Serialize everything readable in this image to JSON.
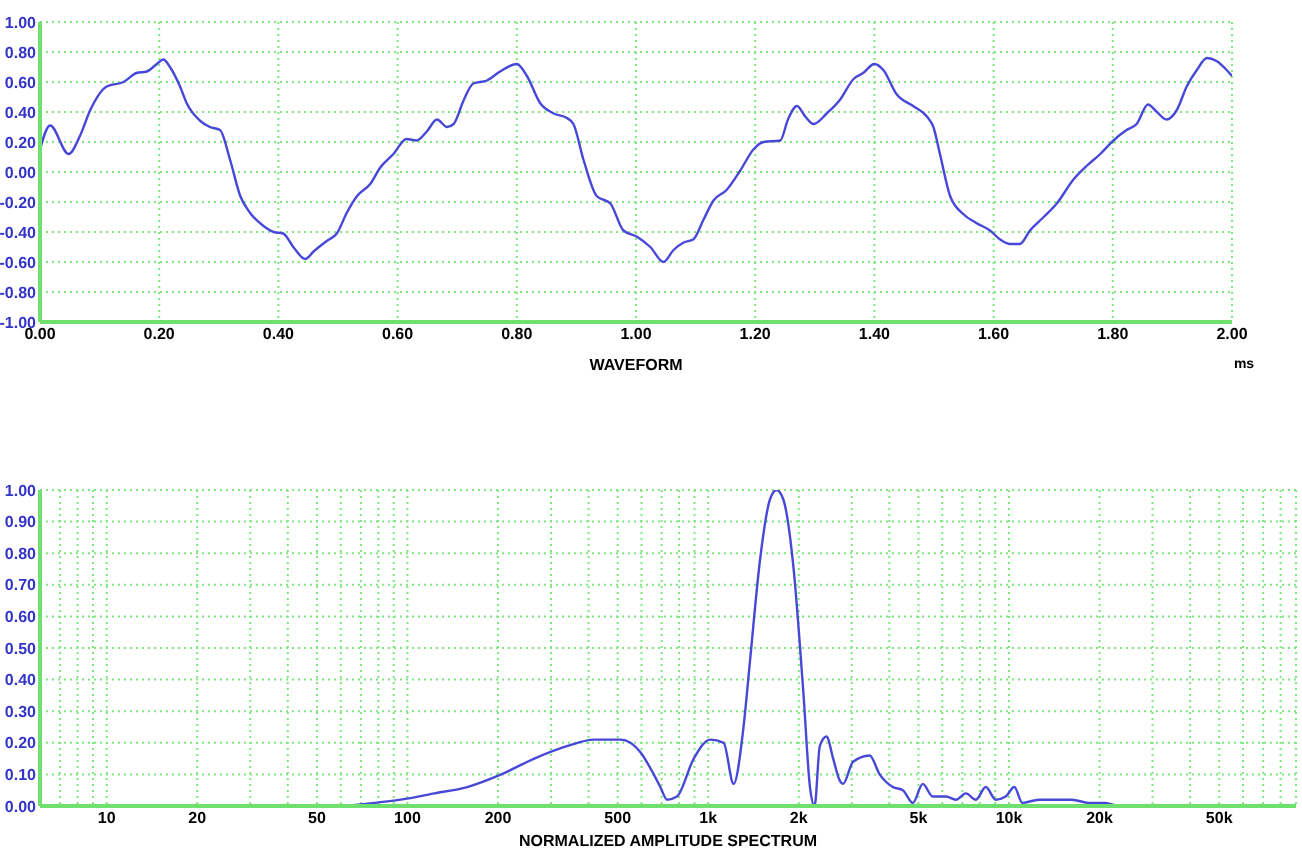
{
  "chart_data": [
    {
      "type": "line",
      "xlabel": "WAVEFORM",
      "annotations": [
        "ms"
      ],
      "grid": true,
      "x": [
        0,
        0.017,
        0.048,
        0.067,
        0.084,
        0.112,
        0.14,
        0.162,
        0.179,
        0.196,
        0.207,
        0.218,
        0.235,
        0.246,
        0.269,
        0.285,
        0.302,
        0.319,
        0.336,
        0.352,
        0.375,
        0.392,
        0.408,
        0.425,
        0.445,
        0.459,
        0.481,
        0.498,
        0.515,
        0.532,
        0.554,
        0.571,
        0.593,
        0.615,
        0.632,
        0.649,
        0.666,
        0.683,
        0.694,
        0.711,
        0.727,
        0.75,
        0.772,
        0.8,
        0.817,
        0.839,
        0.862,
        0.884,
        0.895,
        0.912,
        0.934,
        0.957,
        0.979,
        1.001,
        1.024,
        1.046,
        1.063,
        1.08,
        1.096,
        1.113,
        1.13,
        1.152,
        1.175,
        1.197,
        1.214,
        1.242,
        1.255,
        1.27,
        1.284,
        1.298,
        1.32,
        1.342,
        1.365,
        1.381,
        1.4,
        1.415,
        1.437,
        1.465,
        1.488,
        1.499,
        1.51,
        1.527,
        1.549,
        1.571,
        1.594,
        1.611,
        1.628,
        1.644,
        1.661,
        1.684,
        1.706,
        1.734,
        1.756,
        1.779,
        1.801,
        1.823,
        1.84,
        1.859,
        1.874,
        1.89,
        1.907,
        1.924,
        1.941,
        1.958,
        1.974,
        1.991,
        2.0
      ],
      "series": [
        {
          "color": "#4848d8",
          "values": [
            0.15,
            0.31,
            0.12,
            0.24,
            0.41,
            0.57,
            0.6,
            0.66,
            0.67,
            0.72,
            0.75,
            0.7,
            0.57,
            0.46,
            0.34,
            0.3,
            0.28,
            0.08,
            -0.16,
            -0.27,
            -0.36,
            -0.4,
            -0.41,
            -0.5,
            -0.58,
            -0.53,
            -0.46,
            -0.41,
            -0.27,
            -0.16,
            -0.08,
            0.03,
            0.12,
            0.22,
            0.21,
            0.27,
            0.35,
            0.3,
            0.32,
            0.48,
            0.59,
            0.61,
            0.67,
            0.72,
            0.64,
            0.46,
            0.39,
            0.36,
            0.32,
            0.08,
            -0.16,
            -0.21,
            -0.39,
            -0.43,
            -0.5,
            -0.6,
            -0.52,
            -0.47,
            -0.45,
            -0.32,
            -0.19,
            -0.12,
            0.01,
            0.15,
            0.2,
            0.21,
            0.35,
            0.44,
            0.37,
            0.32,
            0.39,
            0.48,
            0.62,
            0.66,
            0.72,
            0.68,
            0.52,
            0.44,
            0.37,
            0.3,
            0.12,
            -0.16,
            -0.28,
            -0.34,
            -0.39,
            -0.45,
            -0.48,
            -0.48,
            -0.39,
            -0.3,
            -0.21,
            -0.05,
            0.04,
            0.12,
            0.21,
            0.28,
            0.32,
            0.45,
            0.4,
            0.35,
            0.41,
            0.57,
            0.68,
            0.76,
            0.74,
            0.68,
            0.64
          ]
        }
      ],
      "xlim": [
        0,
        2
      ],
      "xticks": [
        {
          "value": 0,
          "label": "0.00"
        },
        {
          "value": 0.2,
          "label": "0.20"
        },
        {
          "value": 0.4,
          "label": "0.40"
        },
        {
          "value": 0.6,
          "label": "0.60"
        },
        {
          "value": 0.8,
          "label": "0.80"
        },
        {
          "value": 1,
          "label": "1.00"
        },
        {
          "value": 1.2,
          "label": "1.20"
        },
        {
          "value": 1.4,
          "label": "1.40"
        },
        {
          "value": 1.6,
          "label": "1.60"
        },
        {
          "value": 1.8,
          "label": "1.80"
        },
        {
          "value": 2,
          "label": "2.00"
        }
      ],
      "ylim": [
        -1,
        1
      ],
      "yticks": [
        {
          "value": -1,
          "label": "-1.00"
        },
        {
          "value": -0.8,
          "label": "-0.80"
        },
        {
          "value": -0.6,
          "label": "-0.60"
        },
        {
          "value": -0.4,
          "label": "-0.40"
        },
        {
          "value": -0.2,
          "label": "-0.20"
        },
        {
          "value": 0,
          "label": "0.00"
        },
        {
          "value": 0.2,
          "label": "0.20"
        },
        {
          "value": 0.4,
          "label": "0.40"
        },
        {
          "value": 0.6,
          "label": "0.60"
        },
        {
          "value": 0.8,
          "label": "0.80"
        },
        {
          "value": 1,
          "label": "1.00"
        }
      ]
    },
    {
      "type": "line",
      "xlabel": "NORMALIZED AMPLITUDE SPECTRUM",
      "grid": true,
      "log": "x",
      "x": [
        41,
        58,
        78,
        95,
        123,
        158,
        205,
        264,
        341,
        417,
        512,
        595,
        659,
        693,
        730,
        787,
        895,
        1016,
        1125,
        1214,
        1310,
        1377,
        1487,
        1604,
        1687,
        1777,
        1918,
        2071,
        2179,
        2257,
        2350,
        2473,
        2602,
        2738,
        2808,
        3031,
        3440,
        3715,
        4111,
        4436,
        4789,
        5168,
        5577,
        6170,
        6660,
        7187,
        7760,
        8373,
        9036,
        9752,
        10420,
        11070,
        12570,
        14270,
        16210,
        18400,
        20900,
        23140,
        28330,
        38450
      ],
      "series": [
        {
          "color": "#4848d8",
          "values": [
            0,
            0,
            0.01,
            0.02,
            0.04,
            0.06,
            0.1,
            0.15,
            0.19,
            0.21,
            0.21,
            0.17,
            0.1,
            0.06,
            0.02,
            0.03,
            0.15,
            0.21,
            0.2,
            0.07,
            0.25,
            0.46,
            0.78,
            0.97,
            1,
            0.97,
            0.76,
            0.36,
            0.06,
            0,
            0.19,
            0.22,
            0.15,
            0.08,
            0.07,
            0.14,
            0.16,
            0.1,
            0.06,
            0.05,
            0.01,
            0.07,
            0.03,
            0.03,
            0.02,
            0.04,
            0.02,
            0.06,
            0.02,
            0.03,
            0.06,
            0.01,
            0.02,
            0.02,
            0.02,
            0.01,
            0.01,
            0,
            0,
            0
          ]
        }
      ],
      "xlim": [
        6,
        90000
      ],
      "xticks": [
        {
          "value": 7,
          "label": null
        },
        {
          "value": 8,
          "label": null
        },
        {
          "value": 9,
          "label": null
        },
        10,
        20,
        {
          "value": 30,
          "label": null
        },
        {
          "value": 40,
          "label": null
        },
        50,
        {
          "value": 60,
          "label": null
        },
        {
          "value": 70,
          "label": null
        },
        {
          "value": 80,
          "label": null
        },
        {
          "value": 90,
          "label": null
        },
        100,
        200,
        {
          "value": 300,
          "label": null
        },
        {
          "value": 400,
          "label": null
        },
        500,
        {
          "value": 600,
          "label": null
        },
        {
          "value": 700,
          "label": null
        },
        {
          "value": 800,
          "label": null
        },
        {
          "value": 900,
          "label": null
        },
        {
          "value": 1000,
          "label": "1k"
        },
        {
          "value": 2000,
          "label": "2k"
        },
        {
          "value": 3000,
          "label": null
        },
        {
          "value": 4000,
          "label": null
        },
        {
          "value": 5000,
          "label": "5k"
        },
        {
          "value": 6000,
          "label": null
        },
        {
          "value": 7000,
          "label": null
        },
        {
          "value": 8000,
          "label": null
        },
        {
          "value": 9000,
          "label": null
        },
        {
          "value": 10000,
          "label": "10k"
        },
        {
          "value": 20000,
          "label": "20k"
        },
        {
          "value": 30000,
          "label": null
        },
        {
          "value": 40000,
          "label": null
        },
        {
          "value": 50000,
          "label": "50k"
        },
        {
          "value": 60000,
          "label": null
        },
        {
          "value": 70000,
          "label": null
        },
        {
          "value": 80000,
          "label": null
        }
      ],
      "ylim": [
        0,
        1
      ],
      "yticks": [
        {
          "value": 0,
          "label": "0.00"
        },
        {
          "value": 0.1,
          "label": "0.10"
        },
        {
          "value": 0.2,
          "label": "0.20"
        },
        {
          "value": 0.3,
          "label": "0.30"
        },
        {
          "value": 0.4,
          "label": "0.40"
        },
        {
          "value": 0.5,
          "label": "0.50"
        },
        {
          "value": 0.6,
          "label": "0.60"
        },
        {
          "value": 0.7,
          "label": "0.70"
        },
        {
          "value": 0.8,
          "label": "0.80"
        },
        {
          "value": 0.9,
          "label": "0.90"
        },
        {
          "value": 1,
          "label": "1.00"
        }
      ]
    }
  ]
}
